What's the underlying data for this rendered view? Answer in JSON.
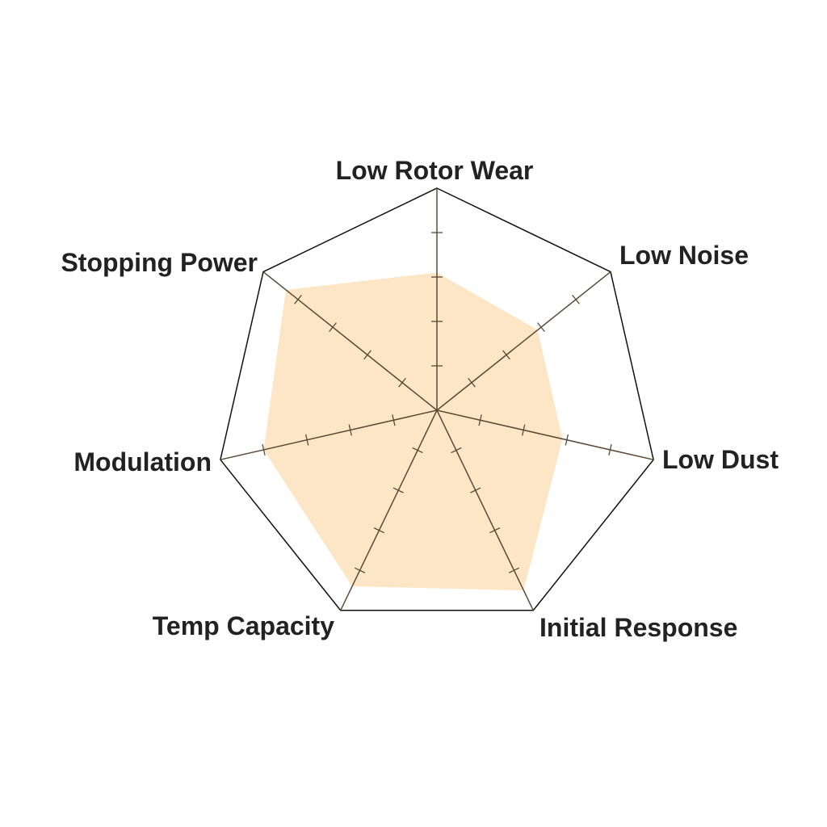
{
  "chart_data": {
    "type": "radar",
    "title": "",
    "axes": [
      "Low Rotor Wear",
      "Low Noise",
      "Low Dust",
      "Initial Response",
      "Temp Capacity",
      "Modulation",
      "Stopping Power"
    ],
    "values": [
      3.1,
      2.9,
      2.9,
      4.5,
      4.4,
      4.0,
      4.35
    ],
    "range": [
      0,
      5
    ],
    "tick_count": 5,
    "grid": false,
    "colors": {
      "fill": "#fce6c6",
      "axis": "#5a4a35",
      "outline": "#111111",
      "label": "#222222"
    }
  }
}
